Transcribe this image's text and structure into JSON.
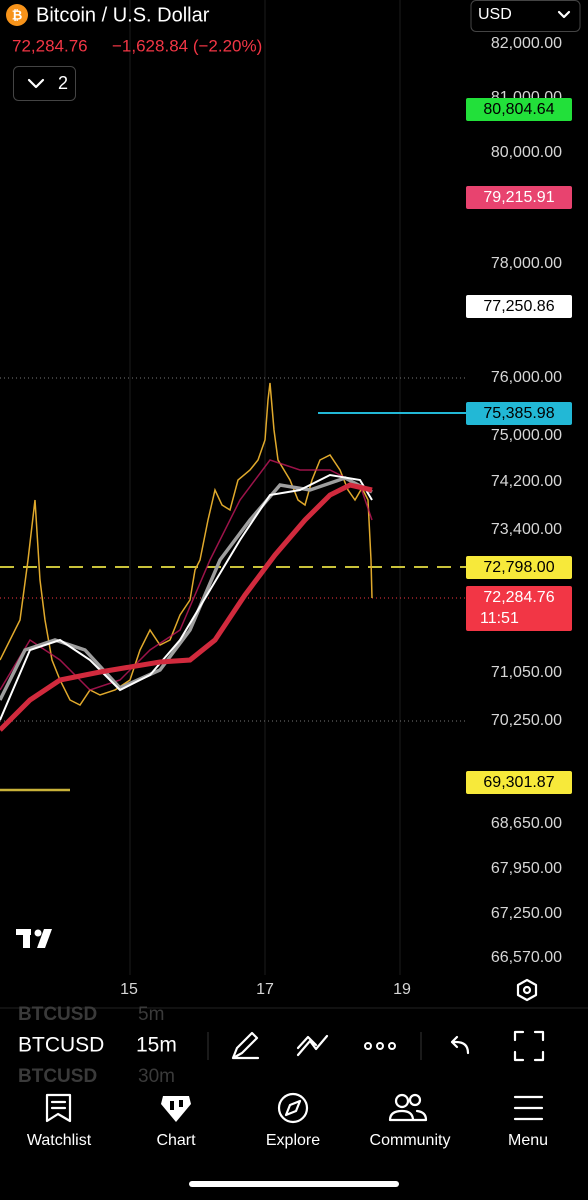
{
  "header": {
    "symbol_title": "Bitcoin / U.S. Dollar",
    "last_price": "72,284.76",
    "change": "−1,628.84 (−2.20%)",
    "currency": "USD",
    "indicator_count": "2"
  },
  "price_axis": {
    "labels": [
      "82,000.00",
      "81,000.00",
      "80,000.00",
      "78,000.00",
      "76,000.00",
      "75,000.00",
      "74,200.00",
      "73,400.00",
      "71,050.00",
      "70,250.00",
      "68,650.00",
      "67,950.00",
      "67,250.00",
      "66,570.00"
    ]
  },
  "price_badges": [
    {
      "label": "80,804.64"
    },
    {
      "label": "79,215.91"
    },
    {
      "label": "77,250.86"
    },
    {
      "label": "75,385.98"
    },
    {
      "label": "72,798.00"
    },
    {
      "label": "72,284.76",
      "countdown": "11:51"
    },
    {
      "label": "69,301.87"
    }
  ],
  "time_axis": {
    "labels": [
      "15",
      "17",
      "19"
    ]
  },
  "toolbar": {
    "symbol": "BTCUSD",
    "interval": "15m",
    "prev_symbol": "BTCUSD",
    "prev_interval": "5m",
    "next_symbol": "BTCUSD",
    "next_interval": "30m"
  },
  "nav": {
    "items": [
      "Watchlist",
      "Chart",
      "Explore",
      "Community",
      "Menu"
    ]
  }
}
